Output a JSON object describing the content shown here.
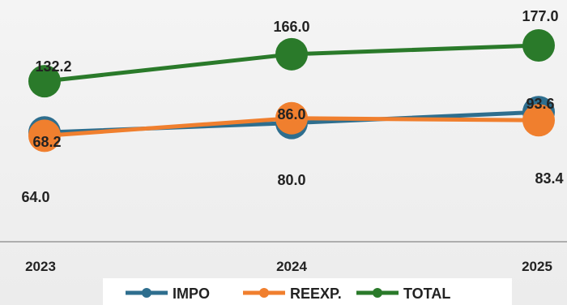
{
  "chart_data": {
    "type": "line",
    "title": "",
    "xlabel": "",
    "ylabel": "",
    "categories": [
      "2023",
      "2024",
      "2025"
    ],
    "ylim": [
      0,
      200
    ],
    "grid": false,
    "legend_position": "bottom",
    "series": [
      {
        "name": "IMPO",
        "values": [
          68.2,
          80.0,
          93.6
        ],
        "labels": [
          "68.2",
          "80.0",
          "93.6"
        ],
        "color": "#2e6e8e"
      },
      {
        "name": "REEXP.",
        "values": [
          64.0,
          86.0,
          83.4
        ],
        "labels": [
          "64.0",
          "86.0",
          "83.4"
        ],
        "color": "#f07f2e"
      },
      {
        "name": "TOTAL",
        "values": [
          132.2,
          166.0,
          177.0
        ],
        "labels": [
          "132.2",
          "166.0",
          "177.0"
        ],
        "color": "#2a7a2a"
      }
    ]
  }
}
